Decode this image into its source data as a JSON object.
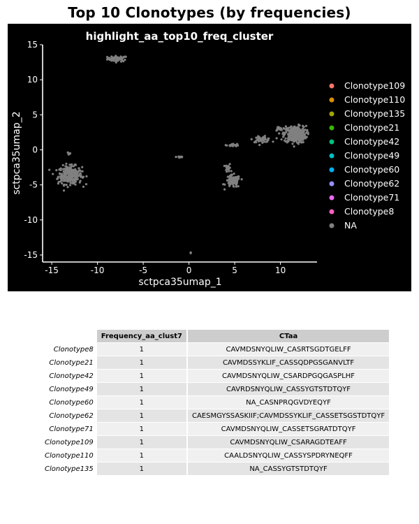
{
  "title": "Top 10 Clonotypes (by frequencies)",
  "chart_data": {
    "type": "scatter",
    "title": "highlight_aa_top10_freq_cluster",
    "xlabel": "sctpca35umap_1",
    "ylabel": "sctpca35umap_2",
    "xlim": [
      -16,
      14
    ],
    "ylim": [
      -16,
      15
    ],
    "xticks": [
      -15,
      -10,
      -5,
      0,
      5,
      10
    ],
    "yticks": [
      -15,
      -10,
      -5,
      0,
      5,
      10,
      15
    ],
    "background": "#000000",
    "legend_position": "right",
    "legend": [
      {
        "name": "Clonotype109",
        "color": "#F8766D"
      },
      {
        "name": "Clonotype110",
        "color": "#D89000"
      },
      {
        "name": "Clonotype135",
        "color": "#A3A500"
      },
      {
        "name": "Clonotype21",
        "color": "#39B600"
      },
      {
        "name": "Clonotype42",
        "color": "#00BF7D"
      },
      {
        "name": "Clonotype49",
        "color": "#00BFC4"
      },
      {
        "name": "Clonotype60",
        "color": "#00B0F6"
      },
      {
        "name": "Clonotype62",
        "color": "#9590FF"
      },
      {
        "name": "Clonotype71",
        "color": "#E76BF3"
      },
      {
        "name": "Clonotype8",
        "color": "#FF62BC"
      },
      {
        "name": "NA",
        "color": "#808080"
      }
    ],
    "series": [
      {
        "name": "NA",
        "color": "#808080",
        "clusters": [
          {
            "center": [
              -7.8,
              13.0
            ],
            "spread": [
              1.1,
              0.4
            ],
            "n": 60
          },
          {
            "center": [
              -13.0,
              -3.6
            ],
            "spread": [
              1.3,
              1.3
            ],
            "n": 280
          },
          {
            "center": [
              -13.1,
              -0.5
            ],
            "spread": [
              0.2,
              0.3
            ],
            "n": 8
          },
          {
            "center": [
              -1.0,
              -1.0
            ],
            "spread": [
              0.4,
              0.15
            ],
            "n": 14
          },
          {
            "center": [
              4.8,
              -4.5
            ],
            "spread": [
              0.8,
              0.9
            ],
            "n": 90
          },
          {
            "center": [
              4.3,
              -2.6
            ],
            "spread": [
              0.3,
              0.6
            ],
            "n": 18
          },
          {
            "center": [
              4.8,
              0.7
            ],
            "spread": [
              0.7,
              0.2
            ],
            "n": 20
          },
          {
            "center": [
              8.0,
              1.5
            ],
            "spread": [
              1.0,
              0.4
            ],
            "n": 50
          },
          {
            "center": [
              9.8,
              3.0
            ],
            "spread": [
              0.4,
              0.3
            ],
            "n": 16
          },
          {
            "center": [
              11.6,
              2.2
            ],
            "spread": [
              1.2,
              1.2
            ],
            "n": 320
          },
          {
            "center": [
              0.2,
              -14.7
            ],
            "spread": [
              0.1,
              0.1
            ],
            "n": 3
          }
        ]
      }
    ]
  },
  "table": {
    "headers": [
      "",
      "Frequency_aa_clust7",
      "CTaa"
    ],
    "rows": [
      {
        "name": "Clonotype8",
        "freq": "1",
        "ctaa": "CAVMDSNYQLIW_CASRTSGDTGELFF"
      },
      {
        "name": "Clonotype21",
        "freq": "1",
        "ctaa": "CAVMDSSYKLIF_CASSQDPGSGANVLTF"
      },
      {
        "name": "Clonotype42",
        "freq": "1",
        "ctaa": "CAVMDSNYQLIW_CSARDPGQGASPLHF"
      },
      {
        "name": "Clonotype49",
        "freq": "1",
        "ctaa": "CAVRDSNYQLIW_CASSYGTSTDTQYF"
      },
      {
        "name": "Clonotype60",
        "freq": "1",
        "ctaa": "NA_CASNPRQGVDYEQYF"
      },
      {
        "name": "Clonotype62",
        "freq": "1",
        "ctaa": "CAESMGYSSASKIIF;CAVMDSSYKLIF_CASSETSGSTDTQYF"
      },
      {
        "name": "Clonotype71",
        "freq": "1",
        "ctaa": "CAVMDSNYQLIW_CASSETSGRATDTQYF"
      },
      {
        "name": "Clonotype109",
        "freq": "1",
        "ctaa": "CAVMDSNYQLIW_CSARAGDTEAFF"
      },
      {
        "name": "Clonotype110",
        "freq": "1",
        "ctaa": "CAALDSNYQLIW_CASSYSPDRYNEQFF"
      },
      {
        "name": "Clonotype135",
        "freq": "1",
        "ctaa": "NA_CASSYGTSTDTQYF"
      }
    ]
  }
}
